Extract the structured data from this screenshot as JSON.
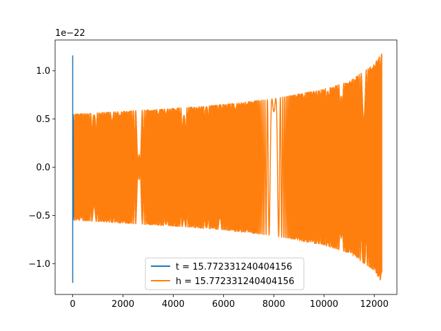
{
  "chart_data": {
    "type": "line",
    "title": "",
    "xlabel": "",
    "ylabel": "",
    "y_offset_label": "1e−22",
    "xlim": [
      -700,
      12900
    ],
    "ylim": [
      -1.32,
      1.32
    ],
    "x_ticks": [
      0,
      2000,
      4000,
      6000,
      8000,
      10000,
      12000
    ],
    "x_tick_labels": [
      "0",
      "2000",
      "4000",
      "6000",
      "8000",
      "10000",
      "12000"
    ],
    "y_ticks": [
      -1.0,
      -0.5,
      0.0,
      0.5,
      1.0
    ],
    "y_tick_labels": [
      "−1.0",
      "−0.5",
      "0.0",
      "0.5",
      "1.0"
    ],
    "grid": false,
    "legend_position": "lower center",
    "series": [
      {
        "name": "t = 15.772331240404156",
        "color": "#1f77b4",
        "description": "short spike near x=0 reaching approx +1.16 / -1.20",
        "x": [
          0,
          0,
          0,
          0,
          10,
          20,
          30
        ],
        "y": [
          0.0,
          1.16,
          -1.2,
          0.55,
          -0.55,
          0.55,
          -0.55
        ]
      },
      {
        "name": "h = 15.772331240404156",
        "color": "#ff7f0e",
        "description": "chirp oscillation, envelope grows from ~0.55 to ~1.2",
        "x": [
          0,
          2000,
          4000,
          6000,
          8000,
          10000,
          11000,
          12000,
          12300
        ],
        "envelope": [
          0.55,
          0.58,
          0.61,
          0.65,
          0.71,
          0.81,
          0.89,
          1.07,
          1.2
        ]
      }
    ]
  }
}
